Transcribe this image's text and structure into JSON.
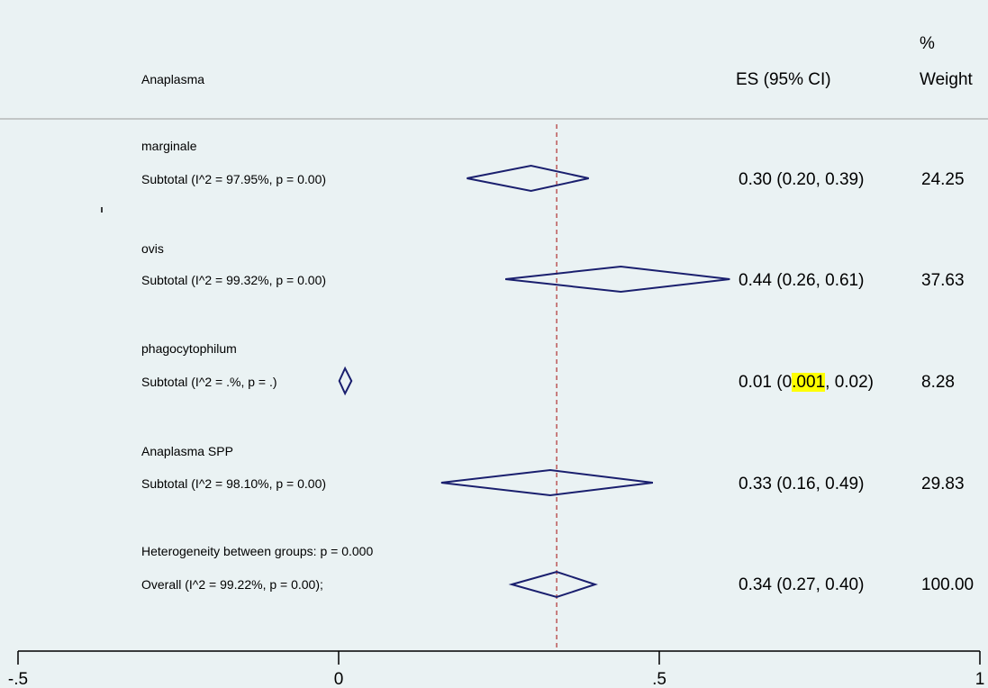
{
  "chart_data": {
    "type": "forest",
    "header": {
      "study_col": "Anaplasma",
      "es_col": "ES (95% CI)",
      "weight_col_line1": "%",
      "weight_col_line2": "Weight"
    },
    "groups": [
      {
        "name": "marginale",
        "subtotal_label": "Subtotal  (I^2 = 97.95%, p = 0.00)",
        "es": 0.3,
        "lo": 0.2,
        "hi": 0.39,
        "ci_text": "0.30 (0.20, 0.39)",
        "weight": "24.25"
      },
      {
        "name": "ovis",
        "subtotal_label": "Subtotal  (I^2 = 99.32%, p = 0.00)",
        "es": 0.44,
        "lo": 0.26,
        "hi": 0.61,
        "ci_text": "0.44 (0.26, 0.61)",
        "weight": "37.63"
      },
      {
        "name": "phagocytophilum",
        "subtotal_label": "Subtotal  (I^2 = .%, p = .)",
        "es": 0.01,
        "lo": 0.001,
        "hi": 0.02,
        "ci_text_pre": "0.01 (0",
        "ci_text_hl": ".001",
        "ci_text_post": ", 0.02)",
        "weight": "8.28"
      },
      {
        "name": "Anaplasma SPP",
        "subtotal_label": "Subtotal  (I^2 = 98.10%, p = 0.00)",
        "es": 0.33,
        "lo": 0.16,
        "hi": 0.49,
        "ci_text": "0.33 (0.16, 0.49)",
        "weight": "29.83"
      }
    ],
    "heterogeneity_label": "Heterogeneity between groups: p = 0.000",
    "overall": {
      "label": "Overall  (I^2 = 99.22%, p = 0.00);",
      "es": 0.34,
      "lo": 0.27,
      "hi": 0.4,
      "ci_text": "0.34 (0.27, 0.40)",
      "weight": "100.00"
    },
    "reference_line": 0.34,
    "x_axis": {
      "min": -0.5,
      "max": 1,
      "ticks": [
        "-.5",
        "0",
        ".5",
        "1"
      ],
      "tick_values": [
        -0.5,
        0,
        0.5,
        1
      ]
    },
    "colors": {
      "diamond": "#1a1f6e",
      "ref_line": "#b03030",
      "background": "#eaf2f3"
    }
  }
}
